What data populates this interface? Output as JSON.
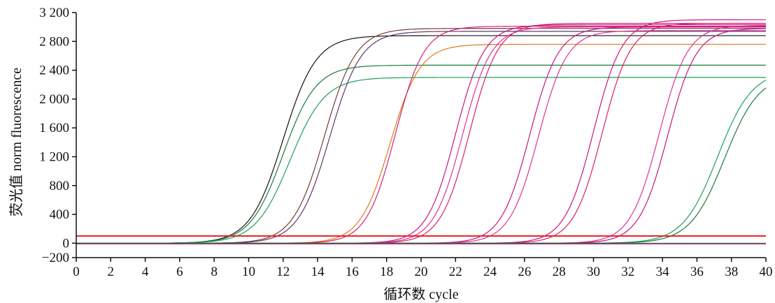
{
  "chart_data": {
    "type": "line",
    "xlabel": "循环数  cycle",
    "ylabel": "荧光值  norm  fluorescence",
    "xlim": [
      0,
      40
    ],
    "ylim": [
      -200,
      3200
    ],
    "x_ticks": [
      "0",
      "2",
      "4",
      "6",
      "8",
      "10",
      "12",
      "14",
      "16",
      "18",
      "20",
      "22",
      "24",
      "26",
      "28",
      "30",
      "32",
      "34",
      "36",
      "38",
      "40"
    ],
    "y_ticks": [
      "−200",
      "0",
      "400",
      "800",
      "1 200",
      "1 600",
      "2 000",
      "2 400",
      "2 800",
      "3 200"
    ],
    "grid": false,
    "threshold": {
      "y": 100,
      "color": "#e8262a"
    },
    "curves": [
      {
        "color": "#111111",
        "midpoint": 12.0,
        "plateau": 2880,
        "slope": 1.05
      },
      {
        "color": "#1f7a3a",
        "midpoint": 12.0,
        "plateau": 2470,
        "slope": 1.05
      },
      {
        "color": "#1aa05a",
        "midpoint": 12.4,
        "plateau": 2300,
        "slope": 1.0
      },
      {
        "color": "#7a3a3a",
        "midpoint": 14.4,
        "plateau": 2980,
        "slope": 1.1
      },
      {
        "color": "#5a3a6a",
        "midpoint": 14.7,
        "plateau": 2940,
        "slope": 1.1
      },
      {
        "color": "#e0781e",
        "midpoint": 18.2,
        "plateau": 2760,
        "slope": 1.15
      },
      {
        "color": "#d8206f",
        "midpoint": 18.5,
        "plateau": 3010,
        "slope": 1.2
      },
      {
        "color": "#c71585",
        "midpoint": 22.0,
        "plateau": 3030,
        "slope": 1.2
      },
      {
        "color": "#e0309a",
        "midpoint": 22.4,
        "plateau": 3000,
        "slope": 1.2
      },
      {
        "color": "#d8206f",
        "midpoint": 22.8,
        "plateau": 3050,
        "slope": 1.2
      },
      {
        "color": "#c71585",
        "midpoint": 26.3,
        "plateau": 3000,
        "slope": 1.2
      },
      {
        "color": "#e0309a",
        "midpoint": 26.8,
        "plateau": 2950,
        "slope": 1.2
      },
      {
        "color": "#c71585",
        "midpoint": 30.0,
        "plateau": 3100,
        "slope": 1.2
      },
      {
        "color": "#d8206f",
        "midpoint": 30.5,
        "plateau": 3050,
        "slope": 1.2
      },
      {
        "color": "#e0309a",
        "midpoint": 33.8,
        "plateau": 3020,
        "slope": 1.2
      },
      {
        "color": "#c71585",
        "midpoint": 34.3,
        "plateau": 2980,
        "slope": 1.2
      },
      {
        "color": "#1aa05a",
        "midpoint": 37.2,
        "plateau": 2400,
        "slope": 1.0
      },
      {
        "color": "#1f7a3a",
        "midpoint": 37.6,
        "plateau": 2350,
        "slope": 1.0
      }
    ],
    "baselines": [
      {
        "color": "#1aa05a",
        "y": 0
      },
      {
        "color": "#c71585",
        "y": -10
      }
    ]
  }
}
